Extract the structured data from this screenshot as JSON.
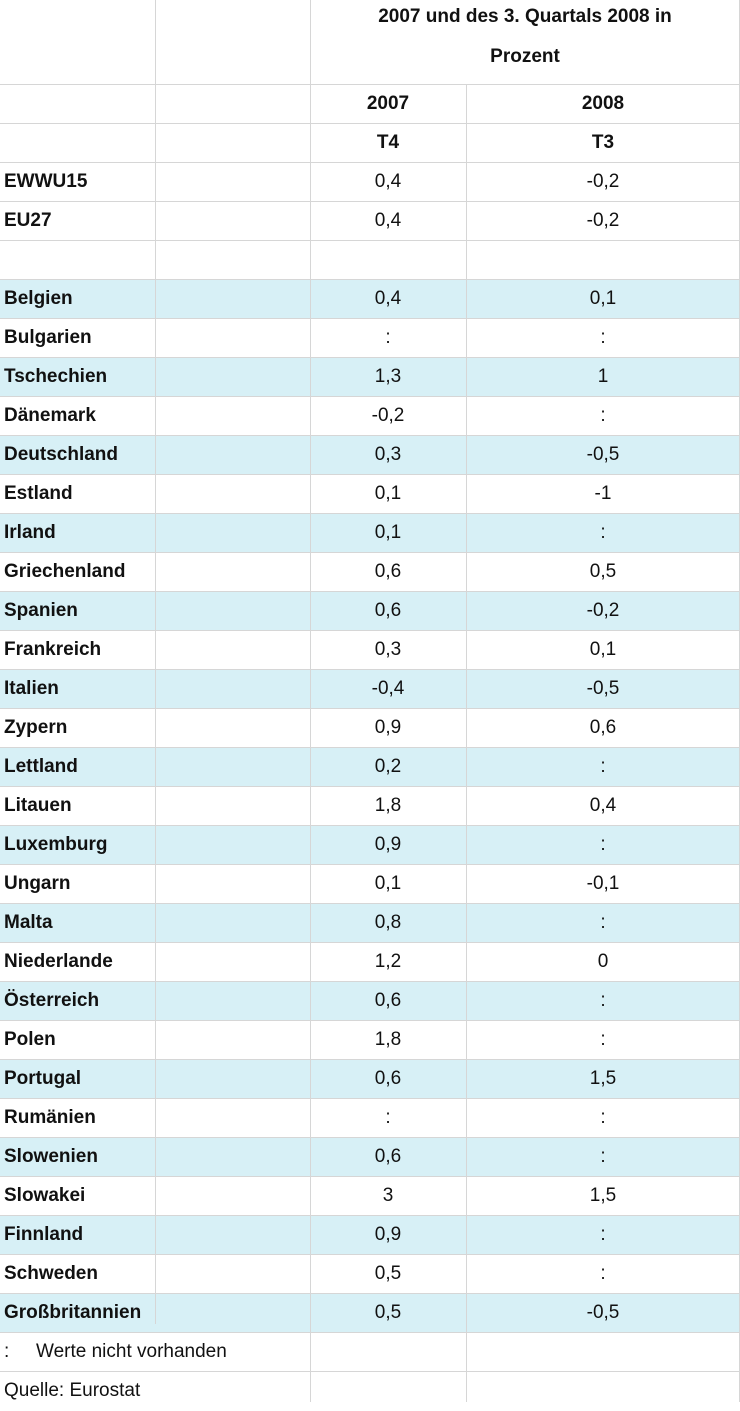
{
  "table": {
    "title_line1": "2007 und des 3. Quartals 2008 in",
    "title_line2": "Prozent",
    "year_headers": [
      "2007",
      "2008"
    ],
    "quarter_headers": [
      "T4",
      "T3"
    ],
    "aggregates": [
      {
        "name": "EWWU15",
        "v2007": "0,4",
        "v2008": "-0,2"
      },
      {
        "name": "EU27",
        "v2007": "0,4",
        "v2008": "-0,2"
      }
    ],
    "countries": [
      {
        "name": "Belgien",
        "v2007": "0,4",
        "v2008": "0,1"
      },
      {
        "name": "Bulgarien",
        "v2007": ":",
        "v2008": ":"
      },
      {
        "name": "Tschechien",
        "v2007": "1,3",
        "v2008": "1"
      },
      {
        "name": "Dänemark",
        "v2007": "-0,2",
        "v2008": ":"
      },
      {
        "name": "Deutschland",
        "v2007": "0,3",
        "v2008": "-0,5"
      },
      {
        "name": "Estland",
        "v2007": "0,1",
        "v2008": "-1"
      },
      {
        "name": "Irland",
        "v2007": "0,1",
        "v2008": ":"
      },
      {
        "name": "Griechenland",
        "v2007": "0,6",
        "v2008": "0,5"
      },
      {
        "name": "Spanien",
        "v2007": "0,6",
        "v2008": "-0,2"
      },
      {
        "name": "Frankreich",
        "v2007": "0,3",
        "v2008": "0,1"
      },
      {
        "name": "Italien",
        "v2007": "-0,4",
        "v2008": "-0,5"
      },
      {
        "name": "Zypern",
        "v2007": "0,9",
        "v2008": "0,6"
      },
      {
        "name": "Lettland",
        "v2007": "0,2",
        "v2008": ":"
      },
      {
        "name": "Litauen",
        "v2007": "1,8",
        "v2008": "0,4"
      },
      {
        "name": "Luxemburg",
        "v2007": "0,9",
        "v2008": ":"
      },
      {
        "name": "Ungarn",
        "v2007": "0,1",
        "v2008": "-0,1"
      },
      {
        "name": "Malta",
        "v2007": "0,8",
        "v2008": ":"
      },
      {
        "name": "Niederlande",
        "v2007": "1,2",
        "v2008": "0"
      },
      {
        "name": "Österreich",
        "v2007": "0,6",
        "v2008": ":"
      },
      {
        "name": "Polen",
        "v2007": "1,8",
        "v2008": ":"
      },
      {
        "name": "Portugal",
        "v2007": "0,6",
        "v2008": "1,5"
      },
      {
        "name": "Rumänien",
        "v2007": ":",
        "v2008": ":"
      },
      {
        "name": "Slowenien",
        "v2007": "0,6",
        "v2008": ":"
      },
      {
        "name": "Slowakei",
        "v2007": "3",
        "v2008": "1,5"
      },
      {
        "name": "Finnland",
        "v2007": "0,9",
        "v2008": ":"
      },
      {
        "name": "Schweden",
        "v2007": "0,5",
        "v2008": ":"
      },
      {
        "name": "Großbritannien",
        "v2007": "0,5",
        "v2008": "-0,5"
      }
    ],
    "footnote_symbol": ":",
    "footnote_text": "Werte nicht vorhanden",
    "source": "Quelle: Eurostat",
    "colors": {
      "shaded_row": "#d7f0f6",
      "grid": "#d6d6d6"
    }
  }
}
